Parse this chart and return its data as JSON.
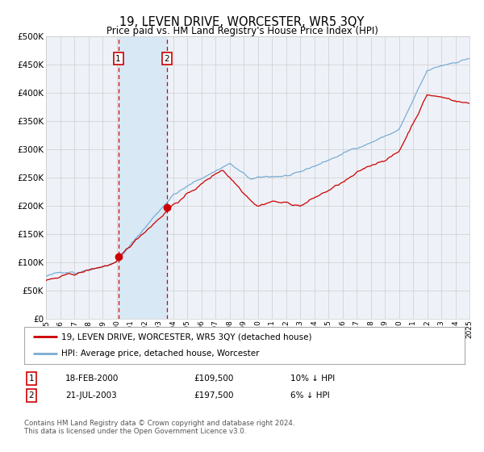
{
  "title": "19, LEVEN DRIVE, WORCESTER, WR5 3QY",
  "subtitle": "Price paid vs. HM Land Registry's House Price Index (HPI)",
  "ylim": [
    0,
    500000
  ],
  "yticks": [
    0,
    50000,
    100000,
    150000,
    200000,
    250000,
    300000,
    350000,
    400000,
    450000,
    500000
  ],
  "ytick_labels": [
    "£0",
    "£50K",
    "£100K",
    "£150K",
    "£200K",
    "£250K",
    "£300K",
    "£350K",
    "£400K",
    "£450K",
    "£500K"
  ],
  "year_start": 1995,
  "year_end": 2025,
  "hpi_color": "#7aadd4",
  "price_color": "#cc0000",
  "point1_year": 2000.12,
  "point1_price": 109500,
  "point2_year": 2003.55,
  "point2_price": 197500,
  "point1_label": "1",
  "point2_label": "2",
  "legend1": "19, LEVEN DRIVE, WORCESTER, WR5 3QY (detached house)",
  "legend2": "HPI: Average price, detached house, Worcester",
  "table_row1": [
    "1",
    "18-FEB-2000",
    "£109,500",
    "10% ↓ HPI"
  ],
  "table_row2": [
    "2",
    "21-JUL-2003",
    "£197,500",
    "6% ↓ HPI"
  ],
  "footer": "Contains HM Land Registry data © Crown copyright and database right 2024.\nThis data is licensed under the Open Government Licence v3.0.",
  "bg_color": "#ffffff",
  "plot_bg_color": "#eef2f8",
  "grid_color": "#cccccc",
  "shade_color": "#d8e8f4"
}
